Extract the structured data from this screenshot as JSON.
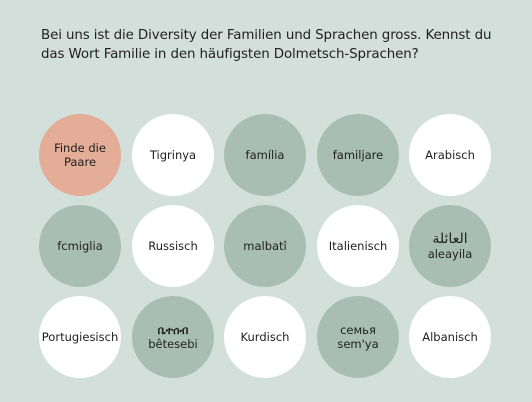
{
  "question": "Bei uns ist die Diversity der Familien und Sprachen gross. Kennst du das Wort Familie in den häufigsten Dolmetsch-Sprachen?",
  "cards": [
    {
      "label": "Finde die Paare",
      "style": "peach"
    },
    {
      "label": "Tigrinya",
      "style": "white"
    },
    {
      "label": "família",
      "style": "green"
    },
    {
      "label": "familjare",
      "style": "green"
    },
    {
      "label": "Arabisch",
      "style": "white"
    },
    {
      "label": "fcmiglia",
      "style": "green"
    },
    {
      "label": "Russisch",
      "style": "white"
    },
    {
      "label": "malbatî",
      "style": "green"
    },
    {
      "label": "Italienisch",
      "style": "white"
    },
    {
      "script": "العائلة",
      "latin": "aleayila",
      "style": "green"
    },
    {
      "label": "Portugiesisch",
      "style": "white"
    },
    {
      "script": "ቤተሰብ",
      "latin": "bêtesebi",
      "style": "green"
    },
    {
      "label": "Kurdisch",
      "style": "white"
    },
    {
      "script": "семья",
      "latin": "sem'ya",
      "style": "green"
    },
    {
      "label": "Albanisch",
      "style": "white"
    }
  ],
  "colors": {
    "background": "#d3dfdb",
    "card_white": "#ffffff",
    "card_green": "#a8beb3",
    "card_peach": "#e4ad97"
  }
}
